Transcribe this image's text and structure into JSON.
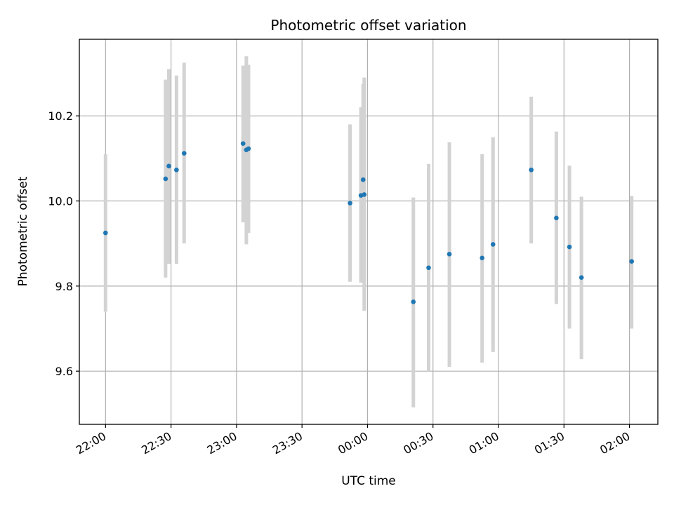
{
  "chart_data": {
    "type": "scatter",
    "title": "Photometric offset variation",
    "xlabel": "UTC time",
    "ylabel": "Photometric offset",
    "x_unit": "UTC clock time",
    "xlim": [
      "21:48",
      "02:13"
    ],
    "ylim": [
      9.475,
      10.38
    ],
    "grid": true,
    "x_ticks": [
      "22:00",
      "22:30",
      "23:00",
      "23:30",
      "00:00",
      "00:30",
      "01:00",
      "01:30",
      "02:00"
    ],
    "y_ticks": [
      "9.6",
      "9.8",
      "10.0",
      "10.2"
    ],
    "colors": {
      "point": "#1f77b4",
      "error_bar": "#d3d3d3",
      "grid": "#b0b0b0"
    },
    "series": [
      {
        "points": [
          {
            "x": "22:00",
            "y": 9.925,
            "low": 9.74,
            "high": 10.11
          },
          {
            "x": "22:27.5",
            "y": 10.052,
            "low": 9.82,
            "high": 10.285
          },
          {
            "x": "22:29",
            "y": 10.082,
            "low": 9.852,
            "high": 10.31
          },
          {
            "x": "22:32.5",
            "y": 10.073,
            "low": 9.852,
            "high": 10.295
          },
          {
            "x": "22:36",
            "y": 10.112,
            "low": 9.9,
            "high": 10.325
          },
          {
            "x": "23:03",
            "y": 10.135,
            "low": 9.95,
            "high": 10.318
          },
          {
            "x": "23:04.5",
            "y": 10.12,
            "low": 9.898,
            "high": 10.34
          },
          {
            "x": "23:05.5",
            "y": 10.123,
            "low": 9.925,
            "high": 10.32
          },
          {
            "x": "23:52",
            "y": 9.995,
            "low": 9.81,
            "high": 10.18
          },
          {
            "x": "23:57",
            "y": 10.013,
            "low": 9.808,
            "high": 10.22
          },
          {
            "x": "23:58",
            "y": 10.05,
            "low": 9.808,
            "high": 10.275
          },
          {
            "x": "23:58.5",
            "y": 10.015,
            "low": 9.742,
            "high": 10.29
          },
          {
            "x": "00:21",
            "y": 9.763,
            "low": 9.515,
            "high": 10.008
          },
          {
            "x": "00:28",
            "y": 9.843,
            "low": 9.6,
            "high": 10.087
          },
          {
            "x": "00:37.5",
            "y": 9.875,
            "low": 9.61,
            "high": 10.138
          },
          {
            "x": "00:52.5",
            "y": 9.866,
            "low": 9.62,
            "high": 10.11
          },
          {
            "x": "00:57.5",
            "y": 9.898,
            "low": 9.645,
            "high": 10.15
          },
          {
            "x": "01:15",
            "y": 10.073,
            "low": 9.9,
            "high": 10.245
          },
          {
            "x": "01:26.5",
            "y": 9.96,
            "low": 9.758,
            "high": 10.163
          },
          {
            "x": "01:32.5",
            "y": 9.892,
            "low": 9.7,
            "high": 10.083
          },
          {
            "x": "01:38",
            "y": 9.82,
            "low": 9.628,
            "high": 10.01
          },
          {
            "x": "02:01",
            "y": 9.858,
            "low": 9.7,
            "high": 10.012
          }
        ]
      }
    ]
  }
}
